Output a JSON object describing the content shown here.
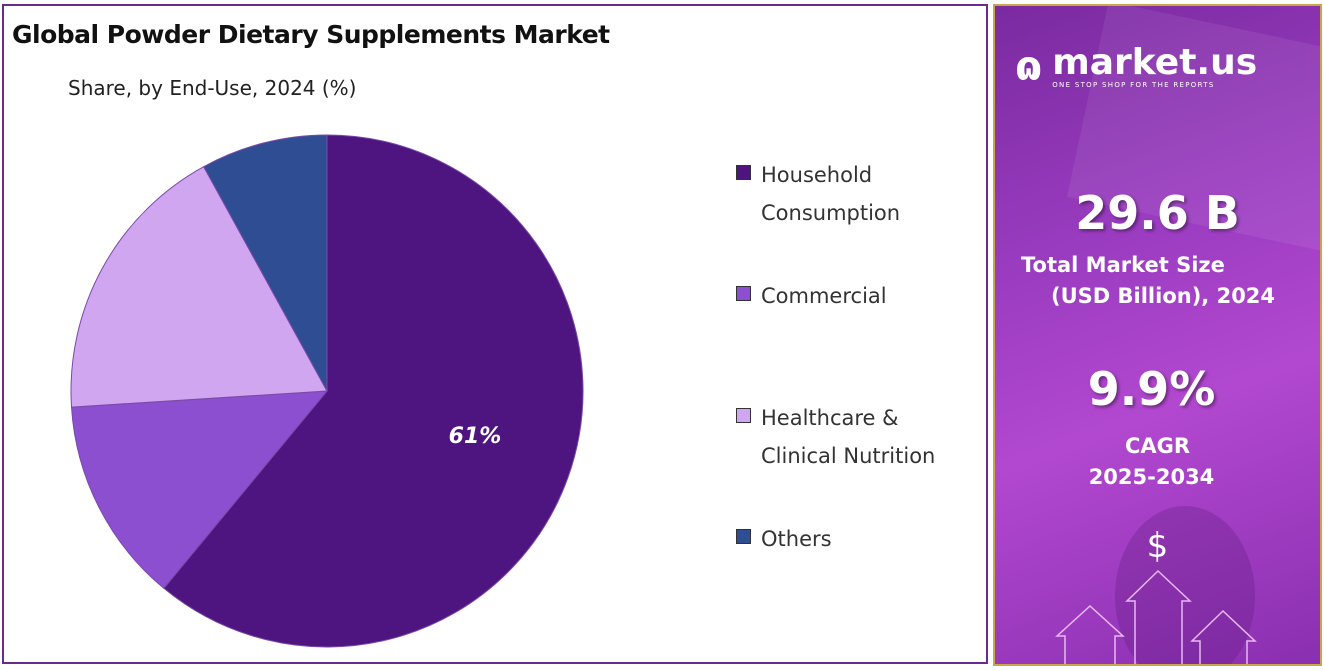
{
  "chart_data": {
    "type": "pie",
    "title": "Global Powder Dietary Supplements Market",
    "subtitle": "Share, by End-Use, 2024 (%)",
    "categories": [
      "Household Consumption",
      "Commercial",
      "Healthcare & Clinical Nutrition",
      "Others"
    ],
    "values": [
      61,
      13,
      18,
      8
    ],
    "data_labels": [
      "61%",
      "",
      "",
      ""
    ],
    "colors": [
      "#4e1480",
      "#8b4fd0",
      "#d0a6f0",
      "#2e4d93"
    ],
    "legend_placement": "right"
  },
  "legend": [
    {
      "line1": "Household",
      "line2": "Consumption"
    },
    {
      "line1": "Commercial",
      "line2": ""
    },
    {
      "line1": "Healthcare &",
      "line2": "Clinical Nutrition"
    },
    {
      "line1": "Others",
      "line2": ""
    }
  ],
  "panel": {
    "logo_name": "market.us",
    "logo_tagline": "ONE STOP SHOP FOR THE REPORTS",
    "market_size": "29.6 B",
    "market_size_label1": "Total Market Size",
    "market_size_label2": "(USD Billion), 2024",
    "cagr": "9.9%",
    "cagr_label1": "CAGR",
    "cagr_label2": "2025-2034",
    "dollar": "$"
  }
}
